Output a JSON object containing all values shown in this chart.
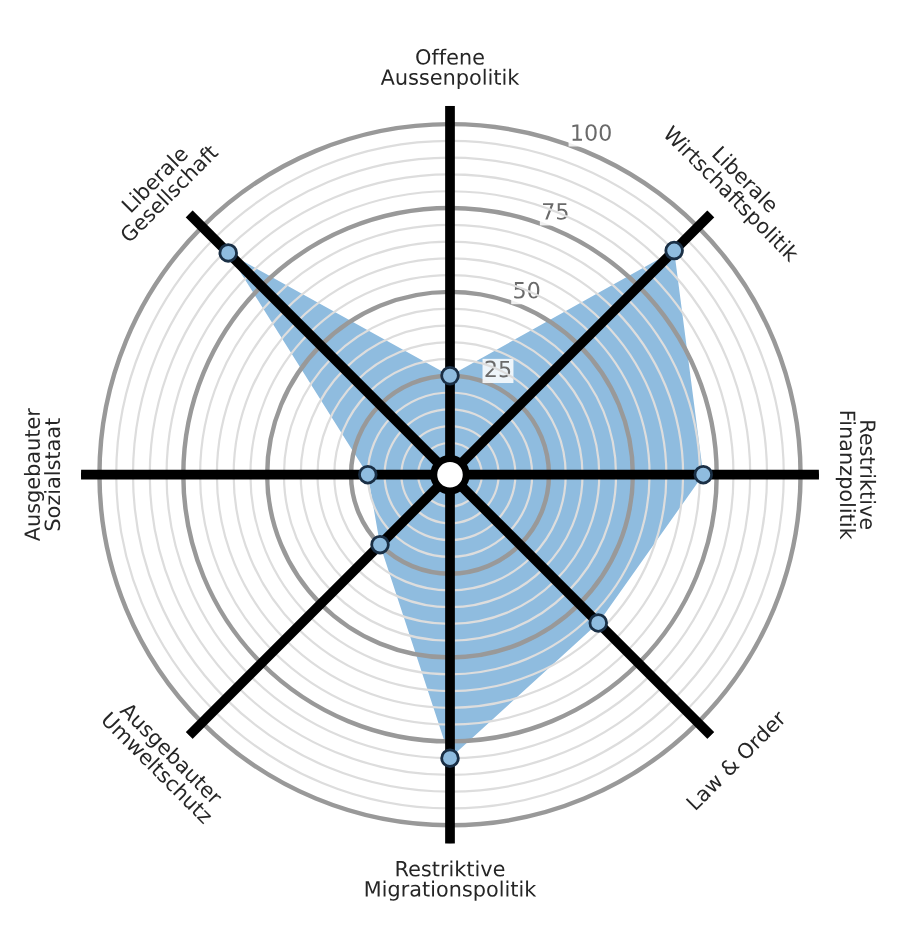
{
  "chart_data": {
    "type": "radar",
    "categories": [
      "Offene\nAussenpolitik",
      "Liberale\nWirtschaftspolitik",
      "Restriktive\nFinanzpolitik",
      "Law & Order",
      "Restriktive\nMigrationspolitik",
      "Ausgebauter\nUmweltschutz",
      "Ausgebauter\nSozialstaat",
      "Liberale\nGesellschaft"
    ],
    "series": [
      {
        "color": "#8fbcdf",
        "values": [
          25,
          90,
          71,
          58,
          80,
          25,
          20,
          89
        ]
      }
    ],
    "ylim": [
      -4.5,
      105.5
    ],
    "yticks": [
      25,
      50,
      75,
      100
    ],
    "grid": true,
    "marker": "circle"
  }
}
